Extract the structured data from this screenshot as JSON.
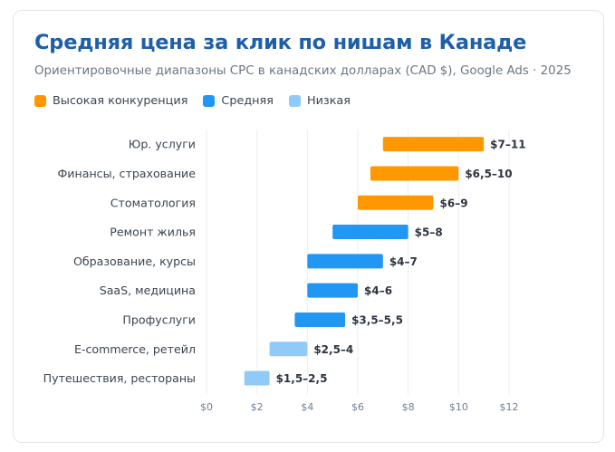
{
  "title": "Средняя цена за клик по нишам в Канаде",
  "subtitle": "Ориентировочные диапазоны CPC в канадских долларах (CAD $), Google Ads · 2025",
  "legend": [
    {
      "label": "Высокая конкуренция",
      "color": "#ff9800"
    },
    {
      "label": "Средняя",
      "color": "#2196f3"
    },
    {
      "label": "Низкая",
      "color": "#90caf9"
    }
  ],
  "chart_data": {
    "type": "bar",
    "orientation": "horizontal-range",
    "categories": [
      "Юр. услуги",
      "Финансы, страхование",
      "Стоматология",
      "Ремонт жилья",
      "Образование, курсы",
      "SaaS, медицина",
      "Профуслуги",
      "E-commerce, ретейл",
      "Путешествия, рестораны"
    ],
    "ranges": [
      [
        7,
        11
      ],
      [
        6.5,
        10
      ],
      [
        6,
        9
      ],
      [
        5,
        8
      ],
      [
        4,
        7
      ],
      [
        4,
        6
      ],
      [
        3.5,
        5.5
      ],
      [
        2.5,
        4
      ],
      [
        1.5,
        2.5
      ]
    ],
    "range_labels": [
      "$7–11",
      "$6,5–10",
      "$6–9",
      "$5–8",
      "$4–7",
      "$4–6",
      "$3,5–5,5",
      "$2,5–4",
      "$1,5–2,5"
    ],
    "competition": [
      "high",
      "high",
      "high",
      "medium",
      "medium",
      "medium",
      "medium",
      "low",
      "low"
    ],
    "colors": {
      "high": "#ff9800",
      "medium": "#2196f3",
      "low": "#90caf9"
    },
    "xlim": [
      0,
      12
    ],
    "xticks": [
      "$0",
      "$2",
      "$4",
      "$6",
      "$8",
      "$10",
      "$12"
    ],
    "grid": true,
    "legend_position": "top-left"
  }
}
